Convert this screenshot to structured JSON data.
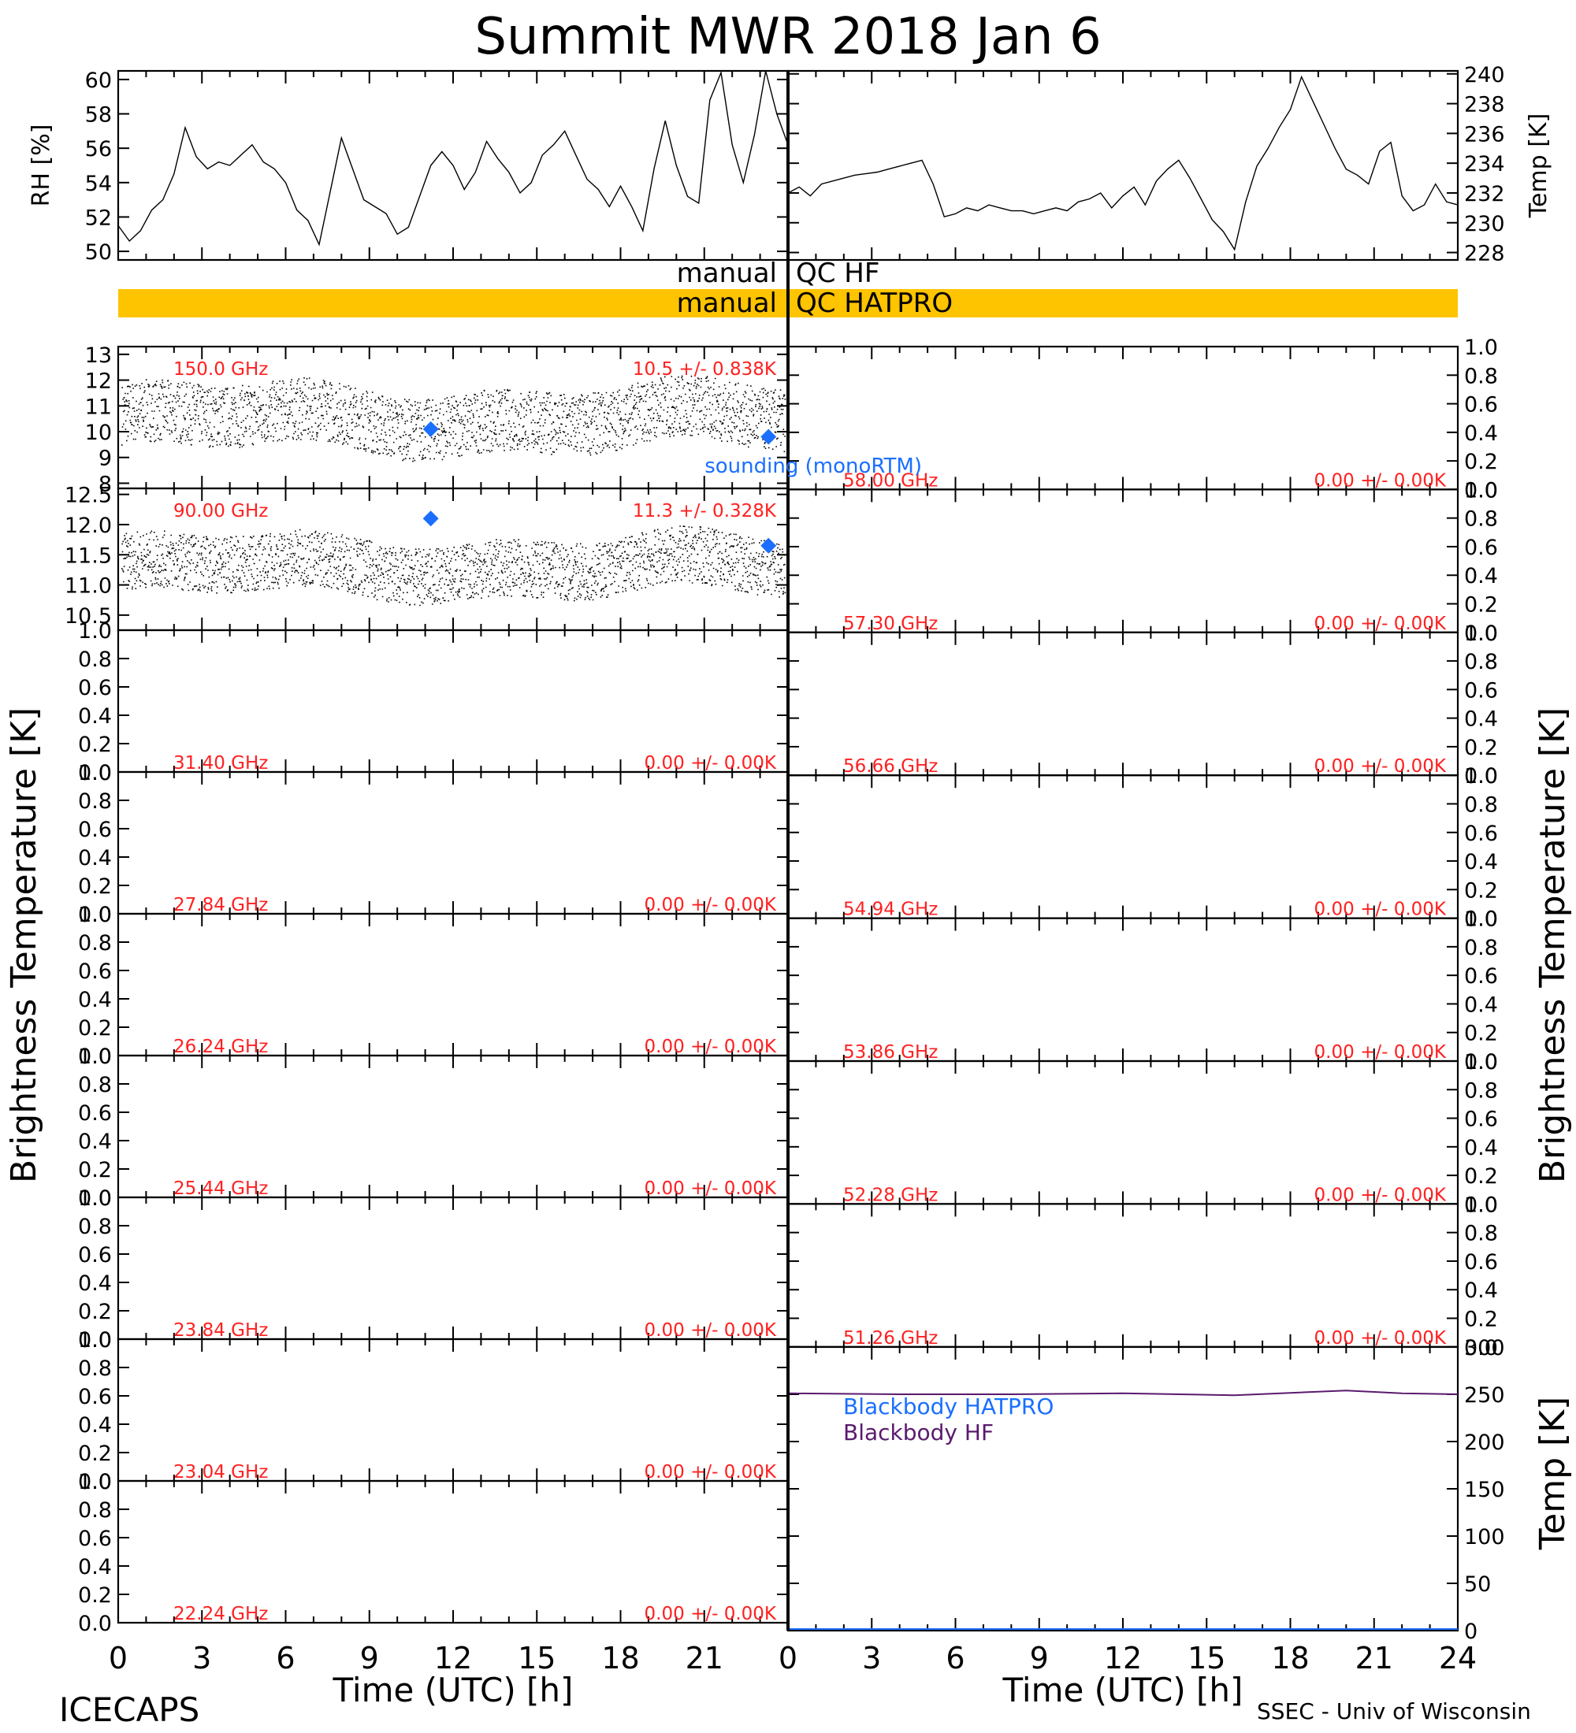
{
  "title": "Summit MWR 2018 Jan   6",
  "footer": {
    "left": "ICECAPS",
    "right": "SSEC - Univ of Wisconsin"
  },
  "colors": {
    "channel_label": "#ff2020",
    "sounding": "#1a6fff",
    "qc_bar": "#ffc400",
    "blackbody_hatpro": "#1a6fff",
    "blackbody_hf": "#5a1a6e",
    "trace": "#000000"
  },
  "chart_data": [
    {
      "id": "rh",
      "type": "line",
      "ylabel": "RH [%]",
      "ylim": [
        49.5,
        60.5
      ],
      "yticks": [
        "50",
        "52",
        "54",
        "56",
        "58",
        "60"
      ],
      "xlim": [
        0,
        12
      ],
      "x": [
        0.0,
        0.2,
        0.4,
        0.6,
        0.8,
        1.0,
        1.2,
        1.4,
        1.6,
        1.8,
        2.0,
        2.2,
        2.4,
        2.6,
        2.8,
        3.0,
        3.2,
        3.4,
        3.6,
        3.8,
        4.0,
        4.2,
        4.4,
        4.6,
        4.8,
        5.0,
        5.2,
        5.4,
        5.6,
        5.8,
        6.0,
        6.2,
        6.4,
        6.6,
        6.8,
        7.0,
        7.2,
        7.4,
        7.6,
        7.8,
        8.0,
        8.2,
        8.4,
        8.6,
        8.8,
        9.0,
        9.2,
        9.4,
        9.6,
        9.8,
        10.0,
        10.2,
        10.4,
        10.6,
        10.8,
        11.0,
        11.2,
        11.4,
        11.6,
        11.8,
        12.0
      ],
      "y": [
        51.5,
        50.6,
        51.2,
        52.4,
        53.0,
        54.5,
        57.2,
        55.5,
        54.8,
        55.2,
        55.0,
        55.6,
        56.2,
        55.2,
        54.8,
        54.0,
        52.4,
        51.8,
        50.4,
        53.5,
        56.6,
        54.8,
        53.0,
        52.6,
        52.2,
        51.0,
        51.4,
        53.2,
        55.0,
        55.8,
        55.0,
        53.6,
        54.6,
        56.4,
        55.4,
        54.6,
        53.4,
        54.0,
        55.6,
        56.2,
        57.0,
        55.6,
        54.2,
        53.6,
        52.6,
        53.8,
        52.6,
        51.2,
        54.8,
        57.6,
        55.0,
        53.2,
        52.8,
        58.8,
        60.4,
        56.2,
        54.0,
        56.8,
        60.6,
        58.0,
        56.2
      ]
    },
    {
      "id": "temp",
      "type": "line",
      "ylabel": "Temp [K]",
      "ylim": [
        227.5,
        240.2
      ],
      "yticks": [
        "228",
        "230",
        "232",
        "234",
        "236",
        "238",
        "240"
      ],
      "xlim": [
        12,
        24
      ],
      "x": [
        12.0,
        12.2,
        12.4,
        12.6,
        12.8,
        13.0,
        13.2,
        13.4,
        13.6,
        13.8,
        14.0,
        14.2,
        14.4,
        14.6,
        14.8,
        15.0,
        15.2,
        15.4,
        15.6,
        15.8,
        16.0,
        16.2,
        16.4,
        16.6,
        16.8,
        17.0,
        17.2,
        17.4,
        17.6,
        17.8,
        18.0,
        18.2,
        18.4,
        18.6,
        18.8,
        19.0,
        19.2,
        19.4,
        19.6,
        19.8,
        20.0,
        20.2,
        20.4,
        20.6,
        20.8,
        21.0,
        21.2,
        21.4,
        21.6,
        21.8,
        22.0,
        22.2,
        22.4,
        22.6,
        22.8,
        23.0,
        23.2,
        23.4,
        23.6,
        23.8,
        24.0
      ],
      "y": [
        232.0,
        232.4,
        231.8,
        232.6,
        232.8,
        233.0,
        233.2,
        233.3,
        233.4,
        233.6,
        233.8,
        234.0,
        234.2,
        232.6,
        230.4,
        230.6,
        231.0,
        230.8,
        231.2,
        231.0,
        230.8,
        230.8,
        230.6,
        230.8,
        231.0,
        230.8,
        231.4,
        231.6,
        232.0,
        231.0,
        231.8,
        232.4,
        231.2,
        232.8,
        233.6,
        234.2,
        233.0,
        231.6,
        230.2,
        229.4,
        228.2,
        231.4,
        233.8,
        235.0,
        236.4,
        237.6,
        239.8,
        238.2,
        236.6,
        235.0,
        233.6,
        233.2,
        232.6,
        234.8,
        235.4,
        231.8,
        230.8,
        231.2,
        232.6,
        231.4,
        231.2
      ]
    },
    {
      "id": "bt-150",
      "type": "scatter",
      "label": "150.0 GHz",
      "stat": "10.5 +/- 0.838K",
      "ylim": [
        7.8,
        13.3
      ],
      "yticks": [
        "8",
        "9",
        "10",
        "11",
        "12",
        "13"
      ],
      "mean": 10.5,
      "spread": 0.838,
      "sounding": [
        {
          "x": 11.2,
          "y": 10.1
        },
        {
          "x": 23.3,
          "y": 9.8
        }
      ],
      "sounding_label": "sounding (monoRTM)"
    },
    {
      "id": "bt-90",
      "type": "scatter",
      "label": "90.00 GHz",
      "stat": "11.3 +/- 0.328K",
      "ylim": [
        10.25,
        12.6
      ],
      "yticks": [
        "10.5",
        "11.0",
        "11.5",
        "12.0",
        "12.5"
      ],
      "mean": 11.3,
      "spread": 0.328,
      "sounding": [
        {
          "x": 11.2,
          "y": 12.1
        },
        {
          "x": 23.3,
          "y": 11.65
        }
      ]
    }
  ],
  "qc": [
    {
      "label": "manual",
      "name": "QC HF",
      "flagged": false
    },
    {
      "label": "manual",
      "name": "QC HATPRO",
      "flagged": true
    }
  ],
  "empty_ticks": [
    "0.0",
    "0.2",
    "0.4",
    "0.6",
    "0.8",
    "1.0"
  ],
  "left_panels": [
    {
      "label": "31.40 GHz",
      "stat": "0.00 +/- 0.00K"
    },
    {
      "label": "27.84 GHz",
      "stat": "0.00 +/- 0.00K"
    },
    {
      "label": "26.24 GHz",
      "stat": "0.00 +/- 0.00K"
    },
    {
      "label": "25.44 GHz",
      "stat": "0.00 +/- 0.00K"
    },
    {
      "label": "23.84 GHz",
      "stat": "0.00 +/- 0.00K"
    },
    {
      "label": "23.04 GHz",
      "stat": "0.00 +/- 0.00K"
    },
    {
      "label": "22.24 GHz",
      "stat": "0.00 +/- 0.00K"
    }
  ],
  "right_panels": [
    {
      "label": "58.00 GHz",
      "stat": "0.00 +/- 0.00K"
    },
    {
      "label": "57.30 GHz",
      "stat": "0.00 +/- 0.00K"
    },
    {
      "label": "56.66 GHz",
      "stat": "0.00 +/- 0.00K"
    },
    {
      "label": "54.94 GHz",
      "stat": "0.00 +/- 0.00K"
    },
    {
      "label": "53.86 GHz",
      "stat": "0.00 +/- 0.00K"
    },
    {
      "label": "52.28 GHz",
      "stat": "0.00 +/- 0.00K"
    },
    {
      "label": "51.26 GHz",
      "stat": "0.00 +/- 0.00K"
    }
  ],
  "blackbody": {
    "ylim": [
      0,
      300
    ],
    "yticks": [
      "0",
      "50",
      "100",
      "150",
      "200",
      "250",
      "300"
    ],
    "ylabel": "Temp [K]",
    "legend": [
      "Blackbody HATPRO",
      "Blackbody HF"
    ],
    "hf_x": [
      12,
      14,
      16,
      18,
      20,
      22,
      23,
      24
    ],
    "hf_y": [
      251,
      250,
      250,
      251,
      249,
      254,
      251,
      250
    ],
    "hatpro_y": 0
  },
  "bt_ylabel": "Brightness Temperature [K]",
  "xaxis": {
    "left_ticks": [
      "0",
      "3",
      "6",
      "9",
      "12",
      "15",
      "18",
      "21"
    ],
    "right_ticks": [
      "0",
      "3",
      "6",
      "9",
      "12",
      "15",
      "18",
      "21",
      "24"
    ],
    "label": "Time (UTC) [h]"
  }
}
